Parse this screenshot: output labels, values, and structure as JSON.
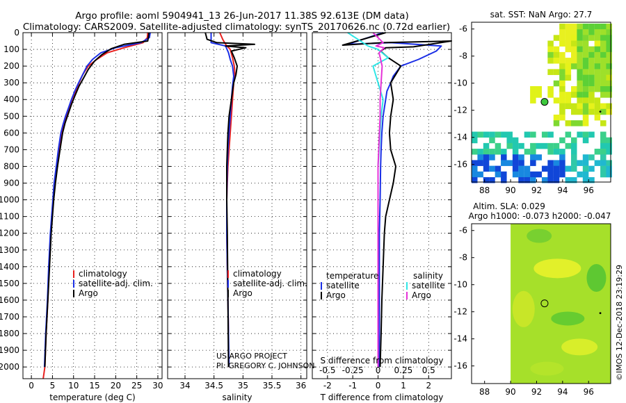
{
  "title": {
    "line1": "Argo profile: aoml 5904941_13 26-Jun-2017 11.38S 92.613E (DM data)",
    "line2": "Climatology: CARS2009. Satellite-adjusted climatology: synTS_20170626.nc (0.72d earlier)"
  },
  "credit": {
    "project": "US ARGO PROJECT",
    "pi": "PI: GREGORY C. JOHNSON",
    "imos": "©IMOS 12-Dec-2018 23:19:29"
  },
  "colors": {
    "climatology": "#e8201e",
    "satellite": "#1a2ee6",
    "argo": "#000000",
    "sat_salinity": "#30e6e6",
    "argo_salinity": "#e632d8"
  },
  "chart_data": [
    {
      "type": "line",
      "id": "temperature",
      "xlabel": "temperature (deg C)",
      "ylabel": "",
      "xlim": [
        -2,
        31
      ],
      "ylim": [
        2070,
        0
      ],
      "xticks": [
        0,
        5,
        10,
        15,
        20,
        25,
        30
      ],
      "yticks": [
        0,
        100,
        200,
        300,
        400,
        500,
        600,
        700,
        800,
        900,
        1000,
        1100,
        1200,
        1300,
        1400,
        1500,
        1600,
        1700,
        1800,
        1900,
        2000
      ],
      "legend": [
        {
          "label": "climatology",
          "color": "#e8201e"
        },
        {
          "label": "satellite-adj. clim.",
          "color": "#1a2ee6"
        },
        {
          "label": "Argo",
          "color": "#000000"
        }
      ],
      "series": [
        {
          "name": "climatology",
          "color": "#e8201e",
          "x": [
            27.6,
            27.5,
            26.5,
            22,
            18,
            15.5,
            13.5,
            12.2,
            11.3,
            10.5,
            9.6,
            8.9,
            8.3,
            7.7,
            7.1,
            6.5,
            6.0,
            5.5,
            5.2,
            4.9,
            4.6,
            4.2,
            3.9,
            3.5,
            3.2,
            2.8
          ],
          "y": [
            0,
            30,
            60,
            90,
            120,
            160,
            200,
            250,
            300,
            350,
            400,
            450,
            500,
            550,
            600,
            700,
            800,
            900,
            1000,
            1100,
            1200,
            1400,
            1600,
            1800,
            2000,
            2070
          ]
        },
        {
          "name": "satellite-adj. clim.",
          "color": "#1a2ee6",
          "x": [
            28.2,
            28,
            26,
            20,
            16.5,
            14.5,
            13.2,
            12.2,
            11.2,
            10.3,
            9.5,
            8.8,
            8.1,
            7.5,
            7.0,
            6.4,
            5.9,
            5.4,
            5.1,
            4.8,
            4.5,
            4.1,
            3.8,
            3.4,
            3.1
          ],
          "y": [
            0,
            30,
            60,
            90,
            120,
            160,
            200,
            250,
            300,
            350,
            400,
            450,
            500,
            550,
            600,
            700,
            800,
            900,
            1000,
            1100,
            1200,
            1400,
            1600,
            1800,
            2000
          ]
        },
        {
          "name": "Argo",
          "color": "#000000",
          "x": [
            27.9,
            27.8,
            27.6,
            22,
            19,
            16.8,
            15,
            13.5,
            12.4,
            11.3,
            10.3,
            9.5,
            8.8,
            8.0,
            7.4,
            6.8,
            6.2,
            5.7,
            5.3,
            5.0,
            4.7,
            4.3,
            3.9,
            3.5,
            3.2
          ],
          "y": [
            0,
            20,
            50,
            70,
            95,
            130,
            170,
            220,
            270,
            320,
            380,
            430,
            480,
            540,
            600,
            700,
            800,
            900,
            1000,
            1100,
            1200,
            1400,
            1600,
            1800,
            2000
          ]
        }
      ]
    },
    {
      "type": "line",
      "id": "salinity",
      "xlabel": "salinity",
      "xlim": [
        33.7,
        36.1
      ],
      "ylim": [
        2070,
        0
      ],
      "xticks": [
        34,
        34.5,
        35,
        35.5,
        36
      ],
      "legend": [
        {
          "label": "climatology",
          "color": "#e8201e"
        },
        {
          "label": "satellite-adj. clim.",
          "color": "#1a2ee6"
        },
        {
          "label": "Argo",
          "color": "#000000"
        }
      ],
      "series": [
        {
          "name": "climatology",
          "color": "#e8201e",
          "x": [
            34.6,
            34.65,
            34.7,
            34.78,
            34.82,
            34.85,
            34.86,
            34.84,
            34.82,
            34.8,
            34.78,
            34.76,
            34.74,
            34.73,
            34.72,
            34.72,
            34.73,
            34.74,
            34.75,
            34.75
          ],
          "y": [
            0,
            40,
            70,
            100,
            150,
            200,
            250,
            300,
            400,
            500,
            600,
            700,
            800,
            900,
            1000,
            1200,
            1400,
            1600,
            1800,
            2000
          ]
        },
        {
          "name": "satellite-adj. clim.",
          "color": "#1a2ee6",
          "x": [
            34.45,
            34.45,
            34.7,
            34.75,
            34.78,
            34.82,
            34.84,
            34.82,
            34.8,
            34.78,
            34.76,
            34.74,
            34.73,
            34.72,
            34.72,
            34.73,
            34.74,
            34.75,
            34.76
          ],
          "y": [
            0,
            60,
            80,
            120,
            160,
            200,
            260,
            320,
            400,
            500,
            600,
            700,
            800,
            1000,
            1200,
            1400,
            1600,
            1800,
            2000
          ]
        },
        {
          "name": "Argo",
          "color": "#000000",
          "x": [
            34.35,
            34.38,
            34.55,
            35.2,
            34.7,
            35.05,
            34.8,
            34.85,
            34.9,
            34.88,
            34.84,
            34.82,
            34.8,
            34.78,
            34.76,
            34.74,
            34.73,
            34.72,
            34.72,
            34.72,
            34.73,
            34.74,
            34.75
          ],
          "y": [
            0,
            40,
            60,
            70,
            80,
            90,
            110,
            150,
            200,
            250,
            300,
            350,
            400,
            450,
            500,
            600,
            700,
            800,
            900,
            1000,
            1200,
            1600,
            2000
          ]
        }
      ]
    },
    {
      "type": "line",
      "id": "difference",
      "xlabel": "T difference from climatology",
      "xlabel2": "S difference from climatology",
      "xlim": [
        -2.6,
        2.9
      ],
      "ylim": [
        2070,
        0
      ],
      "xticks": [
        -2,
        -1,
        0,
        1,
        2
      ],
      "xticks_s": [
        "-0.5",
        "-0.25",
        "0",
        "0.25",
        "0.5"
      ],
      "legend_left_title": "temperature",
      "legend_right_title": "salinity",
      "legend": [
        {
          "label": "satellite",
          "color": "#1a2ee6",
          "group": "temperature"
        },
        {
          "label": "Argo",
          "color": "#000000",
          "group": "temperature"
        },
        {
          "label": "satellite",
          "color": "#30e6e6",
          "group": "salinity"
        },
        {
          "label": "Argo",
          "color": "#e632d8",
          "group": "salinity"
        }
      ],
      "series": [
        {
          "name": "T satellite",
          "color": "#1a2ee6",
          "x": [
            0.2,
            -1.2,
            0.5,
            2.5,
            2.3,
            1.6,
            0.9,
            0.6,
            0.5,
            0.35,
            0.3,
            0.25,
            0.2,
            0.15,
            0.12,
            0.1,
            0.08,
            0.05,
            0.05,
            0.05,
            0.04
          ],
          "y": [
            0,
            70,
            60,
            80,
            110,
            160,
            200,
            260,
            300,
            350,
            400,
            450,
            500,
            600,
            700,
            800,
            1000,
            1200,
            1500,
            1800,
            2000
          ]
        },
        {
          "name": "T Argo",
          "color": "#000000",
          "x": [
            0.3,
            -1.4,
            0.2,
            2.9,
            1.4,
            0.3,
            0.1,
            0.4,
            0.9,
            0.5,
            0.6,
            0.5,
            0.45,
            0.5,
            0.7,
            0.6,
            0.45,
            0.3,
            0.25,
            0.2,
            0.15,
            0.12,
            0.1,
            0.08
          ],
          "y": [
            0,
            75,
            60,
            50,
            85,
            90,
            110,
            150,
            200,
            300,
            400,
            500,
            600,
            700,
            800,
            900,
            1000,
            1100,
            1200,
            1400,
            1600,
            1800,
            1900,
            2000
          ]
        },
        {
          "name": "S satellite",
          "color": "#30e6e6",
          "x": [
            -0.3,
            -0.1,
            0.0,
            0.1,
            -0.05,
            0.0,
            0.05,
            0.03,
            0.02,
            0.0,
            0.0,
            0.0,
            0.0,
            0.0
          ],
          "y": [
            0,
            80,
            100,
            150,
            200,
            300,
            400,
            500,
            600,
            800,
            1000,
            1200,
            1500,
            2000
          ]
        },
        {
          "name": "S Argo",
          "color": "#e632d8",
          "x": [
            -0.05,
            0.05,
            -0.02,
            0.06,
            0.01,
            0.04,
            0.03,
            0.02,
            0.02,
            0.0,
            0.0,
            0.0,
            0.0
          ],
          "y": [
            0,
            60,
            80,
            90,
            120,
            200,
            300,
            400,
            500,
            800,
            1000,
            1400,
            2000
          ]
        }
      ]
    },
    {
      "type": "heatmap",
      "id": "sst_map",
      "title": "sat. SST: NaN Argo: 27.7",
      "xlim": [
        87,
        97.7
      ],
      "ylim": [
        -17.3,
        -5.5
      ],
      "xticks": [
        "88",
        "90",
        "92",
        "94",
        "96"
      ],
      "yticks": [
        "-6",
        "-8",
        "-10",
        "-12",
        "-14",
        "-16"
      ],
      "profile_location": [
        92.613,
        -11.38
      ]
    },
    {
      "type": "heatmap",
      "id": "sla_map",
      "title": "Altim. SLA: 0.029",
      "subtitle": "Argo h1000: -0.073 h2000: -0.047",
      "xlim": [
        87,
        97.7
      ],
      "ylim": [
        -17.3,
        -5.5
      ],
      "xticks": [
        "88",
        "90",
        "92",
        "94",
        "96"
      ],
      "yticks": [
        "-6",
        "-8",
        "-10",
        "-12",
        "-14",
        "-16"
      ],
      "profile_location": [
        92.613,
        -11.38
      ]
    }
  ]
}
